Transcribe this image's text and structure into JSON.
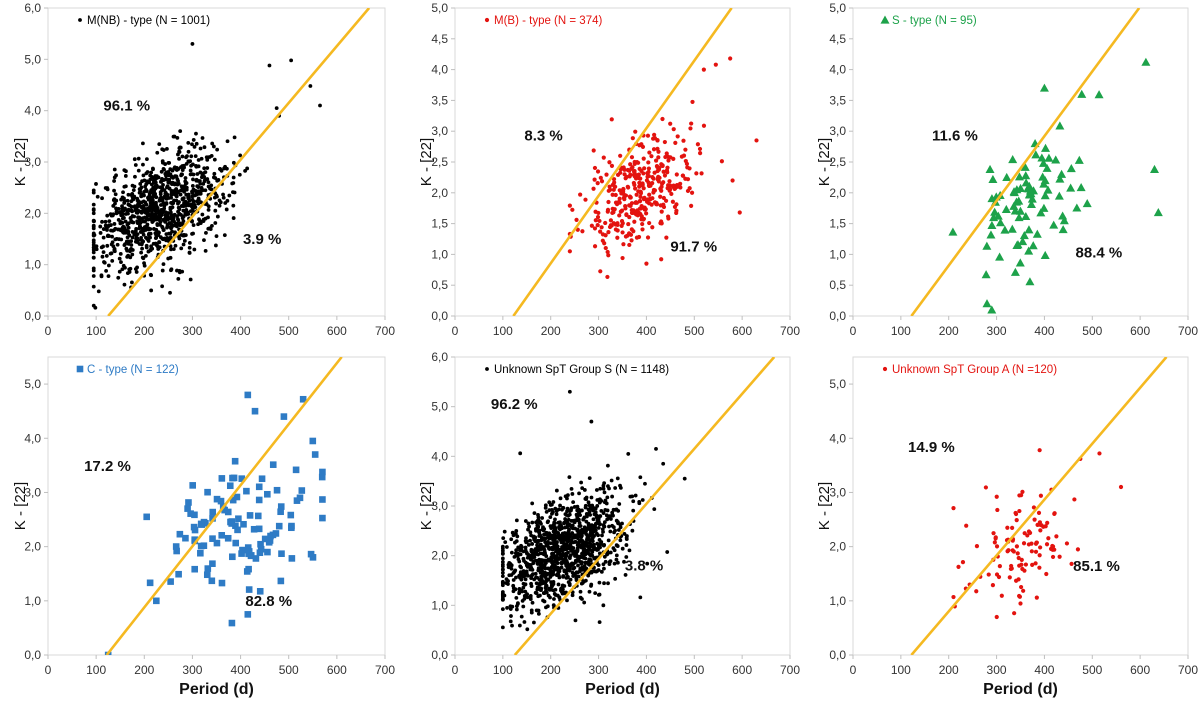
{
  "chart_data": [
    {
      "type": "scatter",
      "title": "",
      "xlabel": "",
      "ylabel": "K - [22]",
      "xlim": [
        0,
        700
      ],
      "ylim": [
        0,
        6
      ],
      "x_ticks": [
        "0",
        "100",
        "200",
        "300",
        "400",
        "500",
        "600",
        "700"
      ],
      "y_ticks": [
        "0,0",
        "1,0",
        "2,0",
        "3,0",
        "4,0",
        "5,0",
        "6,0"
      ],
      "legend": "M(NB) - type (N = 1001)",
      "marker": "circle",
      "color": "#000000",
      "n_points": 1001,
      "cloud": {
        "x_mean": 235,
        "x_sd": 70,
        "y_mean": 2.1,
        "y_sd": 0.6,
        "x_min": 95,
        "x_max": 565
      },
      "highlight_points": [
        [
          300,
          5.3
        ],
        [
          505,
          4.98
        ],
        [
          460,
          4.88
        ],
        [
          545,
          4.48
        ],
        [
          565,
          4.1
        ],
        [
          475,
          4.05
        ],
        [
          480,
          3.9
        ]
      ],
      "fit_line": {
        "x": [
          125,
          667
        ],
        "y": [
          0,
          6.0
        ],
        "color": "#F5B921"
      },
      "annotations": [
        {
          "text": "96.1 %",
          "x": 115,
          "y": 4.0
        },
        {
          "text": "3.9 %",
          "x": 405,
          "y": 1.4
        }
      ]
    },
    {
      "type": "scatter",
      "title": "",
      "xlabel": "",
      "ylabel": "K - [22]",
      "xlim": [
        0,
        700
      ],
      "ylim": [
        0,
        5
      ],
      "x_ticks": [
        "0",
        "100",
        "200",
        "300",
        "400",
        "500",
        "600",
        "700"
      ],
      "y_ticks": [
        "0,0",
        "0,5",
        "1,0",
        "1,5",
        "2,0",
        "2,5",
        "3,0",
        "3,5",
        "4,0",
        "4,5",
        "5,0"
      ],
      "legend": "M(B) - type (N = 374)",
      "marker": "circle",
      "color": "#E3130F",
      "n_points": 374,
      "cloud": {
        "x_mean": 385,
        "x_sd": 55,
        "y_mean": 2.05,
        "y_sd": 0.5,
        "x_min": 240,
        "x_max": 630
      },
      "highlight_points": [
        [
          575,
          4.18
        ],
        [
          545,
          4.08
        ],
        [
          630,
          2.85
        ],
        [
          580,
          2.2
        ],
        [
          595,
          1.68
        ],
        [
          520,
          4.0
        ],
        [
          400,
          0.85
        ]
      ],
      "fit_line": {
        "x": [
          122,
          578
        ],
        "y": [
          0,
          5.0
        ],
        "color": "#F5B921"
      },
      "annotations": [
        {
          "text": "8.3 %",
          "x": 145,
          "y": 2.85
        },
        {
          "text": "91.7 %",
          "x": 450,
          "y": 1.05
        }
      ]
    },
    {
      "type": "scatter",
      "title": "",
      "xlabel": "",
      "ylabel": "K - [22]",
      "xlim": [
        0,
        700
      ],
      "ylim": [
        0,
        5
      ],
      "x_ticks": [
        "0",
        "100",
        "200",
        "300",
        "400",
        "500",
        "600",
        "700"
      ],
      "y_ticks": [
        "0,0",
        "0,5",
        "1,0",
        "1,5",
        "2,0",
        "2,5",
        "3,0",
        "3,5",
        "4,0",
        "4,5",
        "5,0"
      ],
      "legend": "S - type (N = 95)",
      "marker": "triangle",
      "color": "#1DA24A",
      "n_points": 95,
      "cloud": {
        "x_mean": 370,
        "x_sd": 60,
        "y_mean": 1.9,
        "y_sd": 0.6,
        "x_min": 205,
        "x_max": 640
      },
      "highlight_points": [
        [
          612,
          4.12
        ],
        [
          630,
          2.38
        ],
        [
          638,
          1.68
        ],
        [
          400,
          3.7
        ],
        [
          478,
          3.6
        ],
        [
          290,
          0.1
        ],
        [
          280,
          0.2
        ]
      ],
      "fit_line": {
        "x": [
          122,
          598
        ],
        "y": [
          0,
          5.0
        ],
        "color": "#F5B921"
      },
      "annotations": [
        {
          "text": "11.6 %",
          "x": 165,
          "y": 2.85
        },
        {
          "text": "88.4 %",
          "x": 465,
          "y": 0.95
        }
      ]
    },
    {
      "type": "scatter",
      "title": "",
      "xlabel": "Period (d)",
      "ylabel": "K - [22]",
      "xlim": [
        0,
        700
      ],
      "ylim": [
        0,
        5.5
      ],
      "x_ticks": [
        "0",
        "100",
        "200",
        "300",
        "400",
        "500",
        "600",
        "700"
      ],
      "y_ticks": [
        "0,0",
        "1,0",
        "2,0",
        "3,0",
        "4,0",
        "5,0"
      ],
      "legend": "C - type (N = 122)",
      "marker": "square",
      "color": "#2E7BC5",
      "n_points": 122,
      "cloud": {
        "x_mean": 400,
        "x_sd": 70,
        "y_mean": 2.3,
        "y_sd": 0.8,
        "x_min": 200,
        "x_max": 570
      },
      "highlight_points": [
        [
          415,
          4.8
        ],
        [
          530,
          4.72
        ],
        [
          430,
          4.5
        ],
        [
          490,
          4.4
        ],
        [
          205,
          2.55
        ],
        [
          125,
          0.0
        ],
        [
          415,
          0.75
        ],
        [
          225,
          1.0
        ],
        [
          550,
          3.95
        ],
        [
          555,
          3.7
        ],
        [
          570,
          2.87
        ]
      ],
      "fit_line": {
        "x": [
          122,
          610
        ],
        "y": [
          0,
          5.5
        ],
        "color": "#F5B921"
      },
      "annotations": [
        {
          "text": "17.2 %",
          "x": 75,
          "y": 3.4
        },
        {
          "text": "82.8 %",
          "x": 410,
          "y": 0.9
        }
      ]
    },
    {
      "type": "scatter",
      "title": "",
      "xlabel": "Period (d)",
      "ylabel": "K - [22]",
      "xlim": [
        0,
        700
      ],
      "ylim": [
        0,
        6
      ],
      "x_ticks": [
        "0",
        "100",
        "200",
        "300",
        "400",
        "500",
        "600",
        "700"
      ],
      "y_ticks": [
        "0,0",
        "1,0",
        "2,0",
        "3,0",
        "4,0",
        "5,0",
        "6,0"
      ],
      "legend": "Unknown SpT Group S (N = 1148)",
      "marker": "circle",
      "color": "#000000",
      "n_points": 1148,
      "cloud": {
        "x_mean": 225,
        "x_sd": 65,
        "y_mean": 2.1,
        "y_sd": 0.6,
        "x_min": 100,
        "x_max": 480
      },
      "highlight_points": [
        [
          240,
          5.3
        ],
        [
          480,
          3.55
        ],
        [
          420,
          4.15
        ],
        [
          435,
          3.85
        ],
        [
          310,
          1.0
        ],
        [
          285,
          4.7
        ]
      ],
      "fit_line": {
        "x": [
          125,
          667
        ],
        "y": [
          0,
          6.0
        ],
        "color": "#F5B921"
      },
      "annotations": [
        {
          "text": "96.2 %",
          "x": 75,
          "y": 4.95
        },
        {
          "text": "3.8 %",
          "x": 355,
          "y": 1.7
        }
      ]
    },
    {
      "type": "scatter",
      "title": "",
      "xlabel": "Period (d)",
      "ylabel": "K - [22]",
      "xlim": [
        0,
        700
      ],
      "ylim": [
        0,
        5.5
      ],
      "x_ticks": [
        "0",
        "100",
        "200",
        "300",
        "400",
        "500",
        "600",
        "700"
      ],
      "y_ticks": [
        "0,0",
        "1,0",
        "2,0",
        "3,0",
        "4,0",
        "5,0"
      ],
      "legend": "Unknown SpT Group A (N =120)",
      "marker": "circle",
      "color": "#E3130F",
      "n_points": 120,
      "cloud": {
        "x_mean": 350,
        "x_sd": 55,
        "y_mean": 2.0,
        "y_sd": 0.55,
        "x_min": 210,
        "x_max": 560
      },
      "highlight_points": [
        [
          390,
          3.78
        ],
        [
          515,
          3.72
        ],
        [
          475,
          3.62
        ],
        [
          560,
          3.1
        ],
        [
          350,
          0.95
        ],
        [
          470,
          1.95
        ]
      ],
      "fit_line": {
        "x": [
          122,
          655
        ],
        "y": [
          0,
          5.5
        ],
        "color": "#F5B921"
      },
      "annotations": [
        {
          "text": "14.9 %",
          "x": 115,
          "y": 3.75
        },
        {
          "text": "85.1 %",
          "x": 460,
          "y": 1.55
        }
      ]
    }
  ]
}
